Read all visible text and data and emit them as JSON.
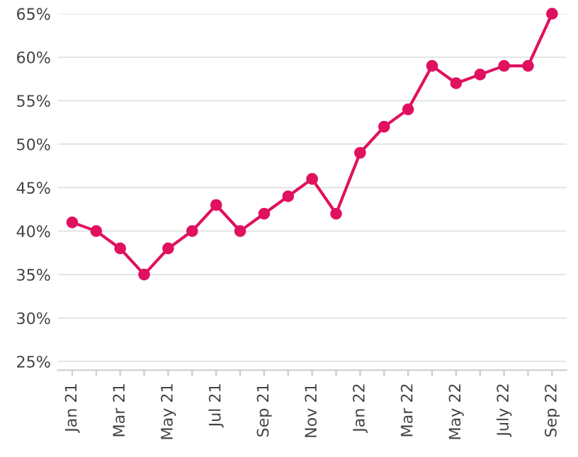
{
  "chart_data": {
    "type": "line",
    "categories": [
      "Jan 21",
      null,
      "Mar 21",
      null,
      "May 21",
      null,
      "Jul 21",
      null,
      "Sep 21",
      null,
      "Nov 21",
      null,
      "Jan 22",
      null,
      "Mar 22",
      null,
      "May 22",
      null,
      "July 22",
      null,
      "Sep 22"
    ],
    "series": [
      {
        "color": "#e0115f",
        "values": [
          41,
          40,
          38,
          35,
          38,
          40,
          43,
          40,
          42,
          44,
          46,
          42,
          49,
          52,
          54,
          59,
          57,
          58,
          59,
          59,
          65
        ]
      }
    ],
    "ylim": [
      24,
      65
    ],
    "yticks": [
      {
        "value": 25,
        "label": "25%"
      },
      {
        "value": 30,
        "label": "30%"
      },
      {
        "value": 35,
        "label": "35%"
      },
      {
        "value": 40,
        "label": "40%"
      },
      {
        "value": 45,
        "label": "45%"
      },
      {
        "value": 50,
        "label": "50%"
      },
      {
        "value": 55,
        "label": "55%"
      },
      {
        "value": 60,
        "label": "60%"
      },
      {
        "value": 65,
        "label": "65%"
      }
    ],
    "grid": "y",
    "marker": "circle",
    "line_style": "solid"
  }
}
